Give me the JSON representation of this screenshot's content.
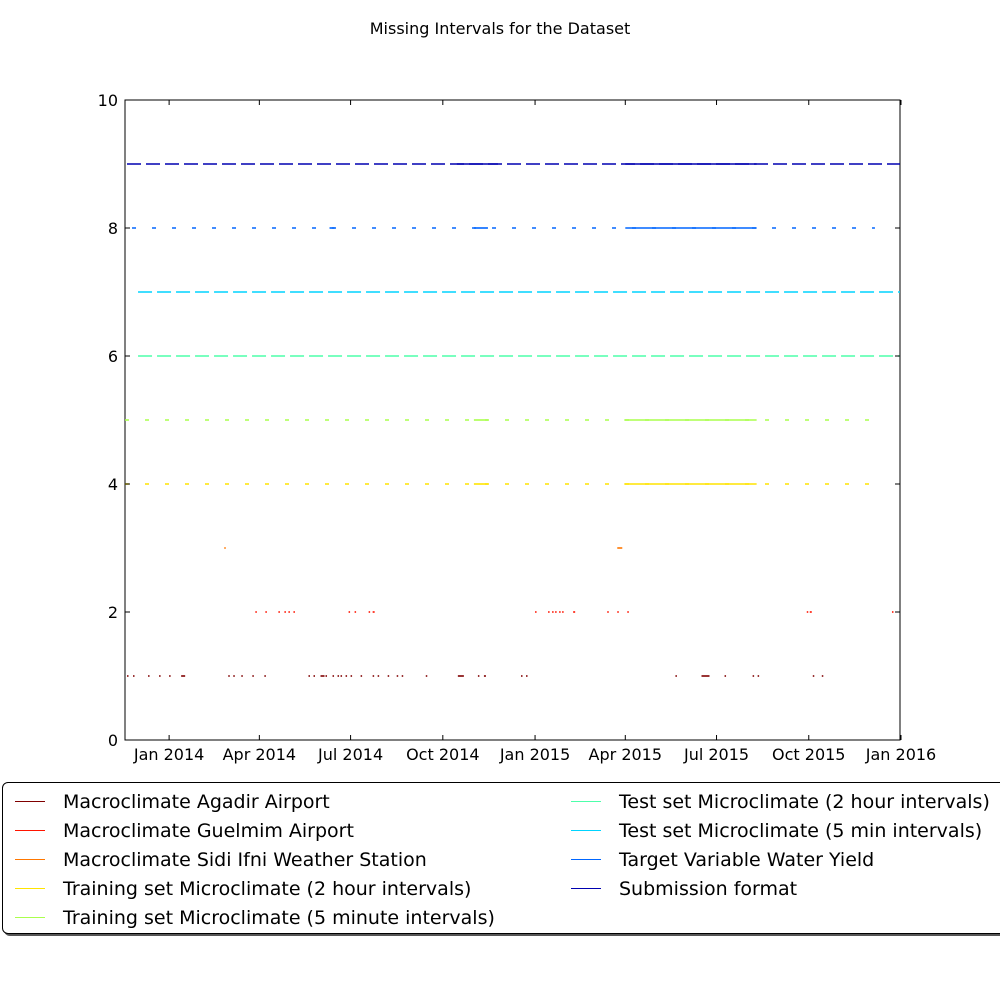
{
  "chart_data": {
    "type": "line",
    "title": "Missing Intervals for the Dataset",
    "xlabel": "",
    "ylabel": "",
    "xlim": [
      "2013-11-18",
      "2015-12-31"
    ],
    "ylim": [
      0,
      10
    ],
    "y_ticks": [
      0,
      2,
      4,
      6,
      8,
      10
    ],
    "x_ticks": [
      {
        "date": "2014-01-01",
        "label": "Jan 2014"
      },
      {
        "date": "2014-04-01",
        "label": "Apr 2014"
      },
      {
        "date": "2014-07-01",
        "label": "Jul 2014"
      },
      {
        "date": "2014-10-01",
        "label": "Oct 2014"
      },
      {
        "date": "2015-01-01",
        "label": "Jan 2015"
      },
      {
        "date": "2015-04-01",
        "label": "Apr 2015"
      },
      {
        "date": "2015-07-01",
        "label": "Jul 2015"
      },
      {
        "date": "2015-10-01",
        "label": "Oct 2015"
      },
      {
        "date": "2016-01-01",
        "label": "Jan 2016"
      }
    ],
    "grid": false,
    "legend_position": "below",
    "series": [
      {
        "name": "Macroclimate Agadir Airport",
        "color": "#800000",
        "y": 1,
        "intervals": [
          [
            "2013-11-20",
            "2013-11-21"
          ],
          [
            "2013-11-26",
            "2013-11-27"
          ],
          [
            "2013-12-11",
            "2013-12-12"
          ],
          [
            "2013-12-22",
            "2013-12-23"
          ],
          [
            "2014-01-01",
            "2014-01-02"
          ],
          [
            "2014-01-13",
            "2014-01-17"
          ],
          [
            "2014-03-01",
            "2014-03-02"
          ],
          [
            "2014-03-06",
            "2014-03-07"
          ],
          [
            "2014-03-14",
            "2014-03-15"
          ],
          [
            "2014-03-25",
            "2014-03-26"
          ],
          [
            "2014-04-06",
            "2014-04-07"
          ],
          [
            "2014-05-20",
            "2014-05-21"
          ],
          [
            "2014-05-25",
            "2014-05-26"
          ],
          [
            "2014-06-01",
            "2014-06-05"
          ],
          [
            "2014-06-06",
            "2014-06-07"
          ],
          [
            "2014-06-13",
            "2014-06-14"
          ],
          [
            "2014-06-18",
            "2014-06-19"
          ],
          [
            "2014-06-21",
            "2014-06-22"
          ],
          [
            "2014-06-26",
            "2014-06-27"
          ],
          [
            "2014-07-01",
            "2014-07-02"
          ],
          [
            "2014-07-11",
            "2014-07-12"
          ],
          [
            "2014-07-23",
            "2014-07-24"
          ],
          [
            "2014-07-28",
            "2014-07-29"
          ],
          [
            "2014-08-07",
            "2014-08-08"
          ],
          [
            "2014-08-16",
            "2014-08-17"
          ],
          [
            "2014-08-21",
            "2014-08-22"
          ],
          [
            "2014-09-14",
            "2014-09-15"
          ],
          [
            "2014-10-16",
            "2014-10-22"
          ],
          [
            "2014-11-05",
            "2014-11-06"
          ],
          [
            "2014-11-11",
            "2014-11-13"
          ],
          [
            "2014-12-18",
            "2014-12-19"
          ],
          [
            "2014-12-23",
            "2014-12-24"
          ],
          [
            "2015-05-21",
            "2015-05-22"
          ],
          [
            "2015-06-16",
            "2015-06-24"
          ],
          [
            "2015-07-09",
            "2015-07-10"
          ],
          [
            "2015-08-06",
            "2015-08-07"
          ],
          [
            "2015-08-11",
            "2015-08-12"
          ],
          [
            "2015-10-05",
            "2015-10-06"
          ],
          [
            "2015-10-14",
            "2015-10-15"
          ]
        ]
      },
      {
        "name": "Macroclimate Guelmim Airport",
        "color": "#ff1400",
        "y": 2,
        "intervals": [
          [
            "2014-03-28",
            "2014-03-29"
          ],
          [
            "2014-04-07",
            "2014-04-08"
          ],
          [
            "2014-04-20",
            "2014-04-21"
          ],
          [
            "2014-04-26",
            "2014-04-27"
          ],
          [
            "2014-04-30",
            "2014-05-01"
          ],
          [
            "2014-05-05",
            "2014-05-06"
          ],
          [
            "2014-06-29",
            "2014-06-30"
          ],
          [
            "2014-07-05",
            "2014-07-06"
          ],
          [
            "2014-07-19",
            "2014-07-20"
          ],
          [
            "2014-07-23",
            "2014-07-25"
          ],
          [
            "2015-01-01",
            "2015-01-02"
          ],
          [
            "2015-01-14",
            "2015-01-15"
          ],
          [
            "2015-01-18",
            "2015-01-19"
          ],
          [
            "2015-01-21",
            "2015-01-22"
          ],
          [
            "2015-01-25",
            "2015-01-26"
          ],
          [
            "2015-01-28",
            "2015-01-29"
          ],
          [
            "2015-02-08",
            "2015-02-10"
          ],
          [
            "2015-03-14",
            "2015-03-15"
          ],
          [
            "2015-03-24",
            "2015-03-25"
          ],
          [
            "2015-04-03",
            "2015-04-04"
          ],
          [
            "2015-09-29",
            "2015-09-30"
          ],
          [
            "2015-10-02",
            "2015-10-04"
          ],
          [
            "2015-12-23",
            "2015-12-24"
          ]
        ]
      },
      {
        "name": "Macroclimate Sidi Ifni Weather Station",
        "color": "#ff7700",
        "y": 3,
        "intervals": [
          [
            "2014-02-25",
            "2014-02-26"
          ],
          [
            "2015-03-24",
            "2015-03-29"
          ]
        ]
      },
      {
        "name": "Training set Microclimate (2 hour intervals)",
        "color": "#ffe400",
        "y": 4,
        "dash": "4 16",
        "intervals": [
          [
            "2013-11-18",
            "2015-12-06"
          ],
          [
            "2014-11-01",
            "2014-11-15"
          ],
          [
            "2015-03-31",
            "2015-08-10"
          ]
        ]
      },
      {
        "name": "Training set Microclimate (5 minute intervals)",
        "color": "#aaff4d",
        "y": 5,
        "dash": "4 16",
        "intervals": [
          [
            "2013-11-18",
            "2015-12-06"
          ],
          [
            "2014-11-01",
            "2014-11-15"
          ],
          [
            "2015-03-31",
            "2015-08-10"
          ]
        ]
      },
      {
        "name": "Test set Microclimate (2 hour intervals)",
        "color": "#4dffaa",
        "y": 6,
        "dash": "14 5",
        "intervals": [
          [
            "2013-12-01",
            "2015-12-31"
          ]
        ]
      },
      {
        "name": "Test set Microclimate (5 min intervals)",
        "color": "#00d4ff",
        "y": 7,
        "dash": "14 5",
        "intervals": [
          [
            "2013-12-01",
            "2015-12-31"
          ]
        ]
      },
      {
        "name": "Target Variable Water Yield",
        "color": "#0066ff",
        "y": 8,
        "dash": "4 16",
        "intervals": [
          [
            "2013-11-25",
            "2015-12-06"
          ],
          [
            "2014-06-10",
            "2014-06-15"
          ],
          [
            "2014-11-01",
            "2014-11-15"
          ],
          [
            "2015-04-01",
            "2015-08-10"
          ]
        ]
      },
      {
        "name": "Submission format",
        "color": "#0000b0",
        "y": 9,
        "dash": "14 5",
        "intervals": [
          [
            "2013-11-20",
            "2015-12-31"
          ],
          [
            "2014-10-15",
            "2014-11-25"
          ],
          [
            "2015-04-01",
            "2015-08-10"
          ]
        ]
      }
    ]
  }
}
